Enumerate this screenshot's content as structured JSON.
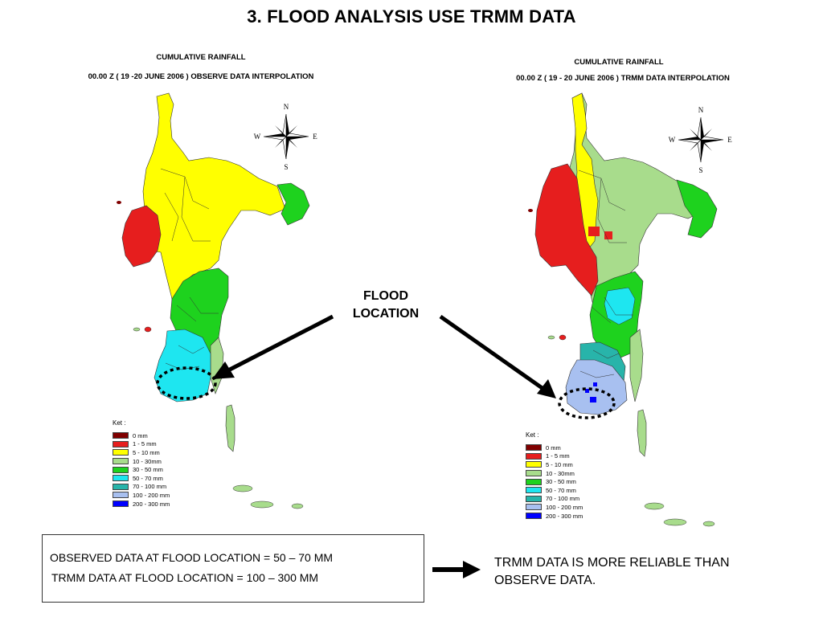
{
  "title": "3. FLOOD ANALYSIS USE TRMM  DATA",
  "left_map": {
    "heading": "CUMULATIVE  RAINFALL",
    "subheading": "00.00 Z ( 19 -20 JUNE 2006 ) OBSERVE DATA INTERPOLATION"
  },
  "right_map": {
    "heading": "CUMULATIVE  RAINFALL",
    "subheading": "00.00 Z ( 19 - 20 JUNE 2006 ) TRMM DATA INTERPOLATION"
  },
  "compass": {
    "n": "N",
    "s": "S",
    "e": "E",
    "w": "W"
  },
  "flood_label": [
    "FLOOD",
    "LOCATION"
  ],
  "legend": {
    "title": "Ket :",
    "items": [
      {
        "label": "0  mm",
        "color": "#800000"
      },
      {
        "label": "1 - 5 mm",
        "color": "#e61e1e"
      },
      {
        "label": "5 - 10 mm",
        "color": "#ffff00"
      },
      {
        "label": "10 - 30mm",
        "color": "#a8dc8c"
      },
      {
        "label": "30 - 50 mm",
        "color": "#1ed21e"
      },
      {
        "label": "50 - 70 mm",
        "color": "#1ee6f0"
      },
      {
        "label": "70 - 100 mm",
        "color": "#28b4aa"
      },
      {
        "label": "100 - 200 mm",
        "color": "#a8c0f0"
      },
      {
        "label": "200 - 300 mm",
        "color": "#0000ff"
      }
    ]
  },
  "summary": {
    "observed": "OBSERVED DATA AT FLOOD LOCATION =  50 – 70 MM",
    "trmm": "TRMM DATA AT FLOOD LOCATION  =  100 – 300 MM"
  },
  "conclusion": [
    "TRMM DATA IS MORE RELIABLE THAN",
    "OBSERVE DATA."
  ]
}
